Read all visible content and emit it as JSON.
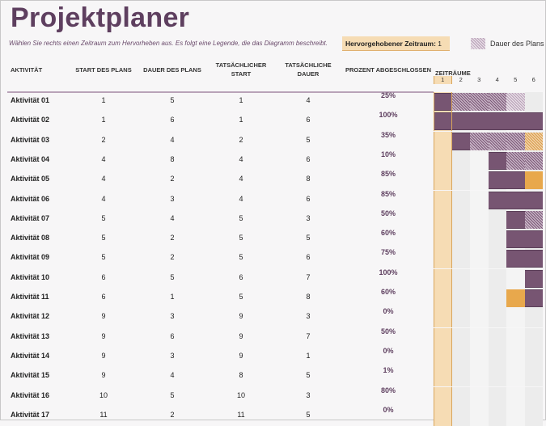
{
  "title": "Projektplaner",
  "subtitle": "Wählen Sie rechts einen Zeitraum zum Hervorheben aus.  Es folgt eine Legende, die das Diagramm beschreibt.",
  "highlight": {
    "label": "Hervorgehobener Zeitraum:",
    "value": 1
  },
  "legend": {
    "plan_label": "Dauer des Plans"
  },
  "headers": {
    "activity": "AKTIVITÄT",
    "plan_start": "START DES PLANS",
    "plan_duration": "DAUER DES PLANS",
    "actual_start": "TATSÄCHLICHER START",
    "actual_duration": "TATSÄCHLICHE DAUER",
    "percent": "PROZENT ABGESCHLOSSEN",
    "periods": "ZEITRÄUME"
  },
  "periods": [
    1,
    2,
    3,
    4,
    5,
    6
  ],
  "colors": {
    "title": "#5e3f5f",
    "complete": "#775572",
    "beyond_plan": "#e8a84c",
    "highlight": "#f6dcb4"
  },
  "rows": [
    {
      "name": "Aktivität 01",
      "plan_start": 1,
      "plan_duration": 5,
      "actual_start": 1,
      "actual_duration": 4,
      "percent": "25%"
    },
    {
      "name": "Aktivität 02",
      "plan_start": 1,
      "plan_duration": 6,
      "actual_start": 1,
      "actual_duration": 6,
      "percent": "100%"
    },
    {
      "name": "Aktivität 03",
      "plan_start": 2,
      "plan_duration": 4,
      "actual_start": 2,
      "actual_duration": 5,
      "percent": "35%"
    },
    {
      "name": "Aktivität 04",
      "plan_start": 4,
      "plan_duration": 8,
      "actual_start": 4,
      "actual_duration": 6,
      "percent": "10%"
    },
    {
      "name": "Aktivität 05",
      "plan_start": 4,
      "plan_duration": 2,
      "actual_start": 4,
      "actual_duration": 8,
      "percent": "85%"
    },
    {
      "name": "Aktivität 06",
      "plan_start": 4,
      "plan_duration": 3,
      "actual_start": 4,
      "actual_duration": 6,
      "percent": "85%"
    },
    {
      "name": "Aktivität 07",
      "plan_start": 5,
      "plan_duration": 4,
      "actual_start": 5,
      "actual_duration": 3,
      "percent": "50%"
    },
    {
      "name": "Aktivität 08",
      "plan_start": 5,
      "plan_duration": 2,
      "actual_start": 5,
      "actual_duration": 5,
      "percent": "60%"
    },
    {
      "name": "Aktivität 09",
      "plan_start": 5,
      "plan_duration": 2,
      "actual_start": 5,
      "actual_duration": 6,
      "percent": "75%"
    },
    {
      "name": "Aktivität 10",
      "plan_start": 6,
      "plan_duration": 5,
      "actual_start": 6,
      "actual_duration": 7,
      "percent": "100%"
    },
    {
      "name": "Aktivität 11",
      "plan_start": 6,
      "plan_duration": 1,
      "actual_start": 5,
      "actual_duration": 8,
      "percent": "60%"
    },
    {
      "name": "Aktivität 12",
      "plan_start": 9,
      "plan_duration": 3,
      "actual_start": 9,
      "actual_duration": 3,
      "percent": "0%"
    },
    {
      "name": "Aktivität 13",
      "plan_start": 9,
      "plan_duration": 6,
      "actual_start": 9,
      "actual_duration": 7,
      "percent": "50%"
    },
    {
      "name": "Aktivität 14",
      "plan_start": 9,
      "plan_duration": 3,
      "actual_start": 9,
      "actual_duration": 1,
      "percent": "0%"
    },
    {
      "name": "Aktivität 15",
      "plan_start": 9,
      "plan_duration": 4,
      "actual_start": 8,
      "actual_duration": 5,
      "percent": "1%"
    },
    {
      "name": "Aktivität 16",
      "plan_start": 10,
      "plan_duration": 5,
      "actual_start": 10,
      "actual_duration": 3,
      "percent": "80%"
    },
    {
      "name": "Aktivität 17",
      "plan_start": 11,
      "plan_duration": 2,
      "actual_start": 11,
      "actual_duration": 5,
      "percent": "0%"
    }
  ]
}
